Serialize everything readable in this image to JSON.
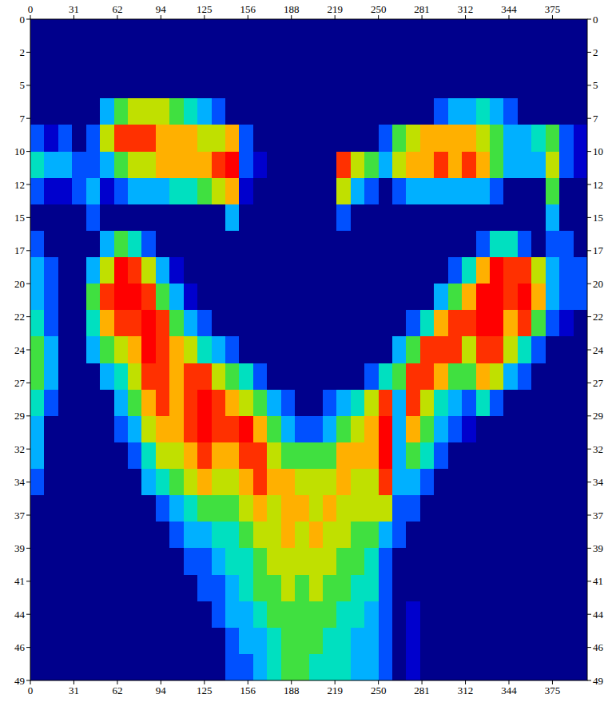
{
  "chart_data": {
    "type": "heatmap",
    "xlim": [
      0,
      400
    ],
    "ylim": [
      0,
      48.8
    ],
    "zlim": [
      0,
      9
    ],
    "xticks": [
      0,
      {
        "value": 31.25,
        "label": "31"
      },
      {
        "value": 62.5,
        "label": "62"
      },
      {
        "value": 93.75,
        "label": "94"
      },
      125,
      {
        "value": 156.25,
        "label": "156"
      },
      {
        "value": 187.5,
        "label": "188"
      },
      {
        "value": 218.75,
        "label": "219"
      },
      250,
      {
        "value": 281.25,
        "label": "281"
      },
      {
        "value": 312.5,
        "label": "312"
      },
      {
        "value": 343.75,
        "label": "344"
      },
      375
    ],
    "yticks": [
      0,
      {
        "value": 2.44,
        "label": "2"
      },
      {
        "value": 4.88,
        "label": "5"
      },
      {
        "value": 7.32,
        "label": "7"
      },
      {
        "value": 9.76,
        "label": "10"
      },
      {
        "value": 12.2,
        "label": "12"
      },
      {
        "value": 14.64,
        "label": "15"
      },
      {
        "value": 17.08,
        "label": "17"
      },
      {
        "value": 19.52,
        "label": "20"
      },
      {
        "value": 21.96,
        "label": "22"
      },
      {
        "value": 24.4,
        "label": "24"
      },
      {
        "value": 26.84,
        "label": "27"
      },
      {
        "value": 29.28,
        "label": "29"
      },
      {
        "value": 31.72,
        "label": "32"
      },
      {
        "value": 34.16,
        "label": "34"
      },
      {
        "value": 36.6,
        "label": "37"
      },
      {
        "value": 39.04,
        "label": "39"
      },
      {
        "value": 41.48,
        "label": "41"
      },
      {
        "value": 43.92,
        "label": "44"
      },
      {
        "value": 46.36,
        "label": "46"
      },
      {
        "value": 48.8,
        "label": "49"
      }
    ],
    "x": [
      5,
      15,
      25,
      35,
      45,
      55,
      65,
      75,
      85,
      95,
      105,
      115,
      125,
      135,
      145,
      155,
      165,
      175,
      185,
      195,
      205,
      215,
      225,
      235,
      245,
      255,
      265,
      275,
      285,
      295,
      305,
      315,
      325,
      335,
      345,
      355,
      365,
      375,
      385,
      395
    ],
    "y": [
      0.976,
      2.928,
      4.88,
      6.832,
      8.784,
      10.736,
      12.688,
      14.64,
      16.592,
      18.544,
      20.496,
      22.448,
      24.4,
      26.352,
      28.304,
      30.256,
      32.208,
      34.16,
      36.112,
      38.064,
      40.016,
      41.968,
      43.92,
      45.872,
      47.824
    ],
    "values": [
      [
        0,
        0,
        0,
        0,
        0,
        0,
        0,
        0,
        0,
        0,
        0,
        0,
        0,
        0,
        0,
        0,
        0,
        0,
        0,
        0,
        0,
        0,
        0,
        0,
        0,
        0,
        0,
        0,
        0,
        0,
        0,
        0,
        0,
        0,
        0,
        0,
        0,
        0,
        0,
        0
      ],
      [
        0,
        0,
        0,
        0,
        0,
        0,
        0,
        0,
        0,
        0,
        0,
        0,
        0,
        0,
        0,
        0,
        0,
        0,
        0,
        0,
        0,
        0,
        0,
        0,
        0,
        0,
        0,
        0,
        0,
        0,
        0,
        0,
        0,
        0,
        0,
        0,
        0,
        0,
        0,
        0
      ],
      [
        0,
        0,
        0,
        0,
        0,
        0,
        0,
        0,
        0,
        0,
        0,
        0,
        0,
        0,
        0,
        0,
        0,
        0,
        0,
        0,
        0,
        0,
        0,
        0,
        0,
        0,
        0,
        0,
        0,
        0,
        0,
        0,
        0,
        0,
        0,
        0,
        0,
        0,
        0,
        0
      ],
      [
        0,
        0,
        0,
        0,
        0,
        3,
        5,
        6,
        6,
        6,
        5,
        4,
        3,
        2,
        0,
        0,
        0,
        0,
        0,
        0,
        0,
        0,
        0,
        0,
        0,
        0,
        0,
        0,
        0,
        2,
        3,
        3,
        4,
        3,
        2,
        0,
        0,
        0,
        0,
        0
      ],
      [
        2,
        1,
        2,
        0,
        2,
        6,
        8,
        8,
        8,
        7,
        7,
        7,
        6,
        6,
        7,
        2,
        0,
        0,
        0,
        0,
        0,
        0,
        0,
        0,
        0,
        2,
        5,
        6,
        7,
        7,
        7,
        7,
        6,
        5,
        3,
        3,
        4,
        5,
        2,
        1
      ],
      [
        4,
        3,
        3,
        2,
        2,
        3,
        5,
        6,
        6,
        7,
        7,
        7,
        7,
        8,
        9,
        2,
        1,
        0,
        0,
        0,
        0,
        0,
        8,
        6,
        5,
        3,
        6,
        7,
        7,
        8,
        7,
        8,
        7,
        5,
        3,
        3,
        3,
        6,
        2,
        1
      ],
      [
        2,
        1,
        1,
        2,
        3,
        1,
        2,
        3,
        3,
        3,
        4,
        4,
        5,
        6,
        7,
        1,
        0,
        0,
        0,
        0,
        0,
        0,
        6,
        3,
        2,
        0,
        2,
        3,
        3,
        3,
        3,
        3,
        3,
        2,
        0,
        0,
        0,
        5,
        0,
        0
      ],
      [
        0,
        0,
        0,
        0,
        2,
        0,
        0,
        0,
        0,
        0,
        0,
        0,
        0,
        0,
        3,
        0,
        0,
        0,
        0,
        0,
        0,
        0,
        2,
        0,
        0,
        0,
        0,
        0,
        0,
        0,
        0,
        0,
        0,
        0,
        0,
        0,
        0,
        3,
        0,
        0
      ],
      [
        2,
        0,
        0,
        0,
        0,
        3,
        5,
        4,
        2,
        0,
        0,
        0,
        0,
        0,
        0,
        0,
        0,
        0,
        0,
        0,
        0,
        0,
        0,
        0,
        0,
        0,
        0,
        0,
        0,
        0,
        0,
        0,
        2,
        4,
        4,
        2,
        0,
        2,
        2,
        0
      ],
      [
        3,
        2,
        0,
        0,
        3,
        6,
        9,
        8,
        6,
        3,
        1,
        0,
        0,
        0,
        0,
        0,
        0,
        0,
        0,
        0,
        0,
        0,
        0,
        0,
        0,
        0,
        0,
        0,
        0,
        0,
        2,
        4,
        7,
        9,
        8,
        8,
        6,
        3,
        2,
        2
      ],
      [
        3,
        2,
        0,
        0,
        5,
        8,
        9,
        9,
        8,
        5,
        3,
        1,
        0,
        0,
        0,
        0,
        0,
        0,
        0,
        0,
        0,
        0,
        0,
        0,
        0,
        0,
        0,
        0,
        0,
        3,
        5,
        7,
        9,
        9,
        8,
        9,
        7,
        3,
        2,
        2
      ],
      [
        4,
        2,
        0,
        0,
        4,
        7,
        8,
        8,
        9,
        8,
        5,
        3,
        2,
        0,
        0,
        0,
        0,
        0,
        0,
        0,
        0,
        0,
        0,
        0,
        0,
        0,
        0,
        2,
        4,
        7,
        8,
        8,
        9,
        9,
        7,
        8,
        5,
        2,
        1,
        0
      ],
      [
        5,
        3,
        0,
        0,
        3,
        5,
        6,
        7,
        9,
        8,
        7,
        6,
        4,
        3,
        2,
        0,
        0,
        0,
        0,
        0,
        0,
        0,
        0,
        0,
        0,
        0,
        3,
        5,
        8,
        8,
        8,
        6,
        8,
        8,
        6,
        4,
        2,
        0,
        0,
        0
      ],
      [
        5,
        3,
        0,
        0,
        0,
        3,
        4,
        6,
        8,
        8,
        7,
        8,
        8,
        6,
        5,
        4,
        2,
        0,
        0,
        0,
        0,
        0,
        0,
        0,
        2,
        4,
        5,
        8,
        8,
        7,
        5,
        5,
        7,
        6,
        3,
        2,
        0,
        0,
        0,
        0
      ],
      [
        4,
        2,
        0,
        0,
        0,
        0,
        3,
        5,
        7,
        8,
        7,
        8,
        9,
        8,
        7,
        6,
        5,
        3,
        2,
        0,
        0,
        2,
        3,
        4,
        6,
        8,
        3,
        8,
        6,
        4,
        3,
        2,
        4,
        2,
        0,
        0,
        0,
        0,
        0,
        0
      ],
      [
        3,
        0,
        0,
        0,
        0,
        0,
        2,
        3,
        6,
        7,
        7,
        8,
        9,
        8,
        8,
        9,
        7,
        5,
        3,
        2,
        2,
        3,
        5,
        6,
        7,
        9,
        3,
        7,
        5,
        3,
        2,
        1,
        0,
        0,
        0,
        0,
        0,
        0,
        0,
        0
      ],
      [
        3,
        0,
        0,
        0,
        0,
        0,
        0,
        2,
        4,
        6,
        6,
        7,
        8,
        7,
        7,
        8,
        8,
        6,
        5,
        5,
        5,
        5,
        7,
        7,
        7,
        9,
        3,
        5,
        4,
        2,
        0,
        0,
        0,
        0,
        0,
        0,
        0,
        0,
        0,
        0
      ],
      [
        2,
        0,
        0,
        0,
        0,
        0,
        0,
        0,
        3,
        4,
        5,
        6,
        7,
        6,
        6,
        7,
        8,
        7,
        7,
        6,
        6,
        6,
        7,
        6,
        6,
        8,
        3,
        3,
        2,
        0,
        0,
        0,
        0,
        0,
        0,
        0,
        0,
        0,
        0,
        0
      ],
      [
        0,
        0,
        0,
        0,
        0,
        0,
        0,
        0,
        0,
        2,
        3,
        4,
        5,
        5,
        5,
        6,
        7,
        6,
        7,
        7,
        6,
        7,
        6,
        6,
        6,
        6,
        2,
        2,
        0,
        0,
        0,
        0,
        0,
        0,
        0,
        0,
        0,
        0,
        0,
        0
      ],
      [
        0,
        0,
        0,
        0,
        0,
        0,
        0,
        0,
        0,
        0,
        2,
        3,
        3,
        4,
        4,
        5,
        6,
        6,
        7,
        6,
        7,
        6,
        6,
        5,
        5,
        3,
        2,
        0,
        0,
        0,
        0,
        0,
        0,
        0,
        0,
        0,
        0,
        0,
        0,
        0
      ],
      [
        0,
        0,
        0,
        0,
        0,
        0,
        0,
        0,
        0,
        0,
        0,
        2,
        2,
        3,
        4,
        4,
        5,
        6,
        6,
        6,
        6,
        6,
        5,
        5,
        4,
        2,
        0,
        0,
        0,
        0,
        0,
        0,
        0,
        0,
        0,
        0,
        0,
        0,
        0,
        0
      ],
      [
        0,
        0,
        0,
        0,
        0,
        0,
        0,
        0,
        0,
        0,
        0,
        0,
        2,
        2,
        3,
        4,
        5,
        5,
        6,
        5,
        6,
        5,
        5,
        4,
        4,
        2,
        0,
        0,
        0,
        0,
        0,
        0,
        0,
        0,
        0,
        0,
        0,
        0,
        0,
        0
      ],
      [
        0,
        0,
        0,
        0,
        0,
        0,
        0,
        0,
        0,
        0,
        0,
        0,
        0,
        2,
        3,
        3,
        4,
        5,
        5,
        5,
        5,
        5,
        4,
        4,
        3,
        2,
        0,
        1,
        0,
        0,
        0,
        0,
        0,
        0,
        0,
        0,
        0,
        0,
        0,
        0
      ],
      [
        0,
        0,
        0,
        0,
        0,
        0,
        0,
        0,
        0,
        0,
        0,
        0,
        0,
        0,
        2,
        3,
        3,
        4,
        5,
        5,
        5,
        4,
        4,
        3,
        3,
        2,
        0,
        1,
        0,
        0,
        0,
        0,
        0,
        0,
        0,
        0,
        0,
        0,
        0,
        0
      ],
      [
        0,
        0,
        0,
        0,
        0,
        0,
        0,
        0,
        0,
        0,
        0,
        0,
        0,
        0,
        2,
        2,
        3,
        4,
        5,
        5,
        4,
        4,
        4,
        3,
        3,
        2,
        0,
        1,
        0,
        0,
        0,
        0,
        0,
        0,
        0,
        0,
        0,
        0,
        0,
        0
      ]
    ]
  }
}
